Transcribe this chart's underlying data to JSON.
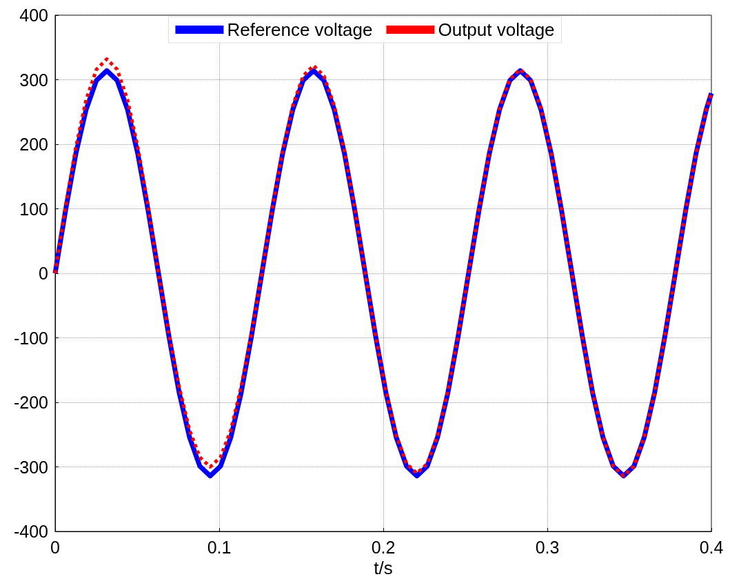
{
  "chart_data": {
    "type": "line",
    "xlabel": "t/s",
    "x": [
      0,
      0.0063,
      0.0126,
      0.0189,
      0.0252,
      0.0315,
      0.0378,
      0.0441,
      0.0504,
      0.0567,
      0.063,
      0.0693,
      0.0756,
      0.0819,
      0.0882,
      0.0945,
      0.1008,
      0.1071,
      0.1134,
      0.1197,
      0.126,
      0.1323,
      0.1386,
      0.1449,
      0.1512,
      0.1575,
      0.1638,
      0.1701,
      0.1764,
      0.1827,
      0.189,
      0.1953,
      0.2016,
      0.2079,
      0.2142,
      0.2205,
      0.2268,
      0.2331,
      0.2394,
      0.2457,
      0.252,
      0.2583,
      0.2646,
      0.2709,
      0.2772,
      0.2835,
      0.2898,
      0.2961,
      0.3024,
      0.3087,
      0.315,
      0.3213,
      0.3276,
      0.3339,
      0.3402,
      0.3465,
      0.3528,
      0.3591,
      0.3654,
      0.3717,
      0.378,
      0.3843,
      0.3906,
      0.3969,
      0.4
    ],
    "series": [
      {
        "name": "Reference voltage",
        "color": "#0000ff",
        "line_style": "solid",
        "values": [
          0,
          97,
          185,
          254,
          299,
          314,
          299,
          254,
          185,
          97,
          0,
          -97,
          -185,
          -254,
          -299,
          -314,
          -299,
          -254,
          -185,
          -97,
          0,
          97,
          185,
          254,
          299,
          314,
          299,
          254,
          185,
          97,
          0,
          -97,
          -185,
          -254,
          -299,
          -314,
          -299,
          -254,
          -185,
          -97,
          0,
          97,
          185,
          254,
          299,
          314,
          299,
          254,
          185,
          97,
          0,
          -97,
          -185,
          -254,
          -299,
          -314,
          -299,
          -254,
          -185,
          -97,
          0,
          97,
          185,
          254,
          279
        ]
      },
      {
        "name": "Output voltage",
        "color": "#ff0000",
        "line_style": "dotted",
        "values": [
          0,
          103,
          195,
          269,
          316,
          332,
          316,
          269,
          195,
          103,
          0,
          -93,
          -176,
          -243,
          -285,
          -300,
          -285,
          -243,
          -176,
          -93,
          0,
          99,
          189,
          260,
          306,
          322,
          306,
          260,
          189,
          99,
          0,
          -96,
          -182,
          -251,
          -295,
          -310,
          -295,
          -251,
          -182,
          -96,
          0,
          98,
          186,
          256,
          301,
          316,
          301,
          256,
          186,
          98,
          0,
          -97,
          -185,
          -254,
          -299,
          -314,
          -299,
          -254,
          -185,
          -97,
          0,
          97,
          185,
          254,
          279
        ]
      }
    ],
    "xlim": [
      0,
      0.4
    ],
    "xticks": [
      0,
      0.1,
      0.2,
      0.3,
      0.4
    ],
    "ylim": [
      -400,
      400
    ],
    "yticks": [
      -400,
      -300,
      -200,
      -100,
      0,
      100,
      200,
      300,
      400
    ],
    "grid": true,
    "legend": "top",
    "marker": "none"
  }
}
